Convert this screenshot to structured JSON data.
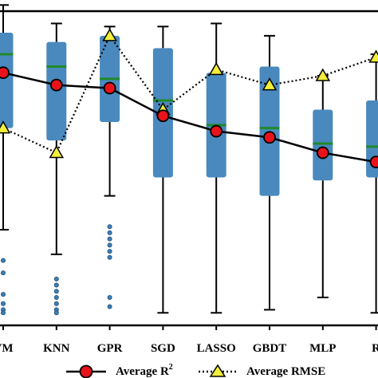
{
  "chart_data": {
    "type": "box",
    "categories": [
      "SVM",
      "KNN",
      "GPR",
      "SGD",
      "LASSO",
      "GBDT",
      "MLP",
      "RF"
    ],
    "visible_category_labels": [
      "VM",
      "KNN",
      "GPR",
      "SGD",
      "LASSO",
      "GBDT",
      "MLP",
      "R"
    ],
    "ylim": [
      0,
      1
    ],
    "boxes": [
      {
        "whisker_low": 0.29,
        "q1": 0.62,
        "median": 0.86,
        "q3": 0.93,
        "whisker_high": 1.02,
        "outliers": [
          0.19,
          0.15,
          0.08,
          0.05,
          0.03,
          0.02
        ]
      },
      {
        "whisker_low": 0.21,
        "q1": 0.58,
        "median": 0.82,
        "q3": 0.9,
        "whisker_high": 0.96,
        "outliers": [
          0.13,
          0.11,
          0.09,
          0.07,
          0.05,
          0.03,
          0.02
        ]
      },
      {
        "whisker_low": 0.4,
        "q1": 0.64,
        "median": 0.78,
        "q3": 0.92,
        "whisker_high": 0.95,
        "outliers": [
          0.3,
          0.28,
          0.26,
          0.24,
          0.22,
          0.2,
          0.07,
          0.04
        ]
      },
      {
        "whisker_low": 0.02,
        "q1": 0.46,
        "median": 0.71,
        "q3": 0.88,
        "whisker_high": 0.95,
        "outliers": []
      },
      {
        "whisker_low": 0.02,
        "q1": 0.46,
        "median": 0.63,
        "q3": 0.8,
        "whisker_high": 0.96,
        "outliers": []
      },
      {
        "whisker_low": 0.03,
        "q1": 0.4,
        "median": 0.62,
        "q3": 0.82,
        "whisker_high": 0.92,
        "outliers": []
      },
      {
        "whisker_low": 0.07,
        "q1": 0.45,
        "median": 0.57,
        "q3": 0.68,
        "whisker_high": 0.79,
        "outliers": []
      },
      {
        "whisker_low": 0.02,
        "q1": 0.46,
        "median": 0.56,
        "q3": 0.71,
        "whisker_high": 0.86,
        "outliers": []
      }
    ],
    "series": [
      {
        "name": "Average R",
        "name_superscript": "2",
        "style": "solid",
        "marker": "circle",
        "marker_color": "#e8121b",
        "values": [
          0.8,
          0.76,
          0.75,
          0.66,
          0.61,
          0.59,
          0.54,
          0.51
        ]
      },
      {
        "name": "Average RMSE",
        "style": "dotted",
        "marker": "triangle",
        "marker_color": "#f2ee3a",
        "values": [
          0.62,
          0.54,
          0.92,
          0.68,
          0.81,
          0.76,
          0.79,
          0.85
        ]
      }
    ],
    "colors": {
      "box": "#4a89be",
      "median": "#1e8a2a",
      "outlier": "#3d7fb5"
    },
    "legend": {
      "placement": "bottom-center"
    },
    "grid": false
  }
}
